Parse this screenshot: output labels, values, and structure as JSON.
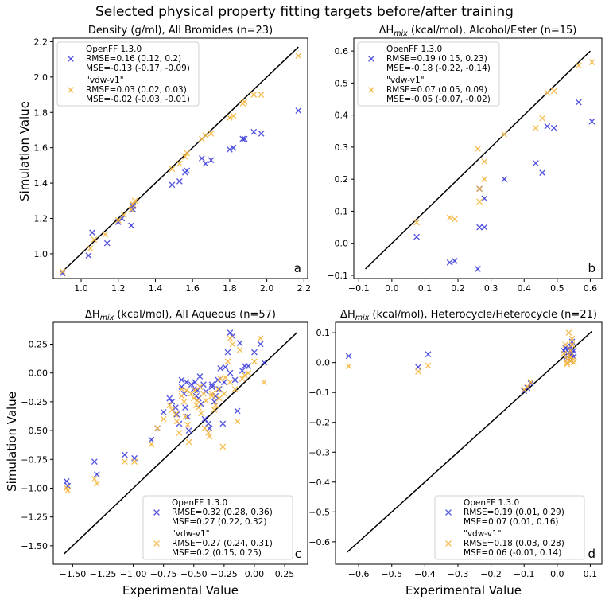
{
  "figure": {
    "title": "Selected physical property fitting targets before/after training",
    "common_xlabel": "Experimental Value",
    "common_ylabel": "Simulation Value"
  },
  "legend": {
    "series1_name": "OpenFF 1.3.0",
    "series2_name": "\"vdw-v1\""
  },
  "colors": {
    "series1": "#3b3bdb",
    "series2": "#f5b53c",
    "line": "#000000"
  },
  "chart_data": [
    {
      "panel": "a",
      "type": "scatter",
      "title": "Density (g/ml), All Bromides (n=23)",
      "xlim": [
        0.85,
        2.22
      ],
      "ylim": [
        0.86,
        2.22
      ],
      "xticks": [
        1.0,
        1.2,
        1.4,
        1.6,
        1.8,
        2.0,
        2.2
      ],
      "xtick_labels": [
        "1.0",
        "1.2",
        "1.4",
        "1.6",
        "1.8",
        "2.0",
        "2.2"
      ],
      "yticks": [
        1.0,
        1.2,
        1.4,
        1.6,
        1.8,
        2.0,
        2.2
      ],
      "ytick_labels": [
        "1.0",
        "1.2",
        "1.4",
        "1.6",
        "1.8",
        "2.0",
        "2.2"
      ],
      "diag": [
        0.9,
        2.17
      ],
      "legend_pos": "top-left",
      "legend_stats": {
        "s1_rmse": "RMSE=0.16 (0.12, 0.2)",
        "s1_mse": "MSE=-0.13 (-0.17, -0.09)",
        "s2_rmse": "RMSE=0.03 (0.02, 0.03)",
        "s2_mse": "MSE=-0.02 (-0.03, -0.01)"
      },
      "series": [
        {
          "name": "OpenFF 1.3.0",
          "x": [
            0.9,
            1.04,
            1.06,
            1.14,
            1.2,
            1.22,
            1.27,
            1.28,
            1.28,
            1.49,
            1.53,
            1.56,
            1.57,
            1.65,
            1.67,
            1.7,
            1.8,
            1.82,
            1.87,
            1.88,
            1.93,
            1.97,
            2.17
          ],
          "y": [
            0.89,
            0.99,
            1.12,
            1.06,
            1.18,
            1.2,
            1.16,
            1.25,
            1.27,
            1.39,
            1.41,
            1.46,
            1.47,
            1.54,
            1.51,
            1.53,
            1.59,
            1.6,
            1.65,
            1.65,
            1.69,
            1.68,
            1.81
          ]
        },
        {
          "name": "\"vdw-v1\"",
          "x": [
            0.9,
            1.05,
            1.07,
            1.13,
            1.2,
            1.23,
            1.27,
            1.28,
            1.29,
            1.49,
            1.53,
            1.56,
            1.57,
            1.65,
            1.67,
            1.7,
            1.8,
            1.82,
            1.87,
            1.88,
            1.93,
            1.97,
            2.17
          ],
          "y": [
            0.9,
            1.03,
            1.08,
            1.11,
            1.19,
            1.22,
            1.25,
            1.28,
            1.3,
            1.48,
            1.51,
            1.55,
            1.57,
            1.65,
            1.67,
            1.68,
            1.77,
            1.78,
            1.85,
            1.86,
            1.9,
            1.9,
            2.12
          ]
        }
      ]
    },
    {
      "panel": "b",
      "type": "scatter",
      "title": "ΔH mix (kcal/mol), Alcohol/Ester (n=15)",
      "title_main": "ΔH",
      "title_sub": "mix",
      "title_rest": " (kcal/mol), Alcohol/Ester (n=15)",
      "xlim": [
        -0.115,
        0.635
      ],
      "ylim": [
        -0.11,
        0.64
      ],
      "xticks": [
        -0.1,
        0.0,
        0.1,
        0.2,
        0.3,
        0.4,
        0.5,
        0.6
      ],
      "xtick_labels": [
        "−0.1",
        "0.0",
        "0.1",
        "0.2",
        "0.3",
        "0.4",
        "0.5",
        "0.6"
      ],
      "yticks": [
        -0.1,
        0.0,
        0.1,
        0.2,
        0.3,
        0.4,
        0.5,
        0.6
      ],
      "ytick_labels": [
        "−0.1",
        "0.0",
        "0.1",
        "0.2",
        "0.3",
        "0.4",
        "0.5",
        "0.6"
      ],
      "diag": [
        -0.08,
        0.6
      ],
      "legend_pos": "top-left",
      "legend_stats": {
        "s1_rmse": "RMSE=0.19 (0.15, 0.23)",
        "s1_mse": "MSE=-0.18 (-0.22, -0.14)",
        "s2_rmse": "RMSE=0.07 (0.05, 0.09)",
        "s2_mse": "MSE=-0.05 (-0.07, -0.02)"
      },
      "series": [
        {
          "name": "OpenFF 1.3.0",
          "x": [
            0.075,
            0.175,
            0.19,
            0.26,
            0.265,
            0.265,
            0.28,
            0.28,
            0.34,
            0.435,
            0.455,
            0.47,
            0.49,
            0.565,
            0.605
          ],
          "y": [
            0.02,
            -0.06,
            -0.055,
            -0.08,
            0.05,
            0.17,
            0.05,
            0.14,
            0.2,
            0.25,
            0.22,
            0.365,
            0.36,
            0.44,
            0.38
          ]
        },
        {
          "name": "\"vdw-v1\"",
          "x": [
            0.075,
            0.175,
            0.19,
            0.26,
            0.265,
            0.265,
            0.28,
            0.28,
            0.34,
            0.435,
            0.455,
            0.47,
            0.49,
            0.565,
            0.605
          ],
          "y": [
            0.065,
            0.08,
            0.075,
            0.295,
            0.13,
            0.17,
            0.2,
            0.255,
            0.34,
            0.36,
            0.39,
            0.47,
            0.475,
            0.555,
            0.565
          ]
        }
      ]
    },
    {
      "panel": "c",
      "type": "scatter",
      "title": "ΔH mix (kcal/mol), All Aqueous (n=57)",
      "title_main": "ΔH",
      "title_sub": "mix",
      "title_rest": " (kcal/mol), All Aqueous (n=57)",
      "xlim": [
        -1.66,
        0.44
      ],
      "ylim": [
        -1.66,
        0.44
      ],
      "xticks": [
        -1.5,
        -1.25,
        -1.0,
        -0.75,
        -0.5,
        -0.25,
        0.0,
        0.25
      ],
      "xtick_labels": [
        "−1.50",
        "−1.25",
        "−1.00",
        "−0.75",
        "−0.50",
        "−0.25",
        "0.00",
        "0.25"
      ],
      "yticks": [
        -1.5,
        -1.25,
        -1.0,
        -0.75,
        -0.5,
        -0.25,
        0.0,
        0.25
      ],
      "ytick_labels": [
        "−1.50",
        "−1.25",
        "−1.00",
        "−0.75",
        "−0.50",
        "−0.25",
        "0.00",
        "0.25"
      ],
      "diag": [
        -1.57,
        0.35
      ],
      "legend_pos": "bottom-right",
      "legend_stats": {
        "s1_rmse": "RMSE=0.32 (0.28, 0.36)",
        "s1_mse": "MSE=0.27 (0.22, 0.32)",
        "s2_rmse": "RMSE=0.27 (0.24, 0.31)",
        "s2_mse": "MSE=0.2 (0.15, 0.25)"
      },
      "series": [
        {
          "name": "OpenFF 1.3.0",
          "x": [
            -1.55,
            -1.54,
            -1.32,
            -1.3,
            -1.07,
            -0.99,
            -0.85,
            -0.8,
            -0.75,
            -0.7,
            -0.68,
            -0.65,
            -0.64,
            -0.62,
            -0.6,
            -0.58,
            -0.56,
            -0.55,
            -0.54,
            -0.52,
            -0.5,
            -0.49,
            -0.48,
            -0.46,
            -0.44,
            -0.42,
            -0.41,
            -0.4,
            -0.38,
            -0.37,
            -0.35,
            -0.33,
            -0.3,
            -0.29,
            -0.28,
            -0.25,
            -0.24,
            -0.22,
            -0.2,
            -0.18,
            -0.16,
            -0.12,
            -0.1,
            -0.08,
            -0.05,
            0.0,
            0.05,
            0.08,
            -0.6,
            -0.45,
            -0.35,
            -0.26,
            -0.14,
            -0.57,
            -0.47,
            -0.32,
            -0.2
          ],
          "y": [
            -0.94,
            -0.98,
            -0.77,
            -0.88,
            -0.71,
            -0.74,
            -0.58,
            -0.48,
            -0.34,
            -0.22,
            -0.25,
            -0.3,
            -0.36,
            -0.44,
            -0.12,
            -0.18,
            -0.08,
            -0.38,
            -0.5,
            -0.1,
            -0.14,
            -0.08,
            -0.2,
            -0.22,
            -0.27,
            -0.1,
            -0.4,
            -0.16,
            -0.44,
            -0.48,
            -0.12,
            -0.25,
            -0.06,
            -0.14,
            0.04,
            -0.08,
            0.05,
            0.18,
            0.35,
            0.32,
            -0.06,
            0.26,
            0.02,
            0.06,
            0.06,
            0.18,
            0.25,
            0.09,
            -0.06,
            -0.03,
            -0.1,
            -0.44,
            -0.33,
            -0.3,
            -0.15,
            -0.2,
            0.0
          ]
        },
        {
          "name": "\"vdw-v1\"",
          "x": [
            -1.55,
            -1.54,
            -1.32,
            -1.3,
            -1.07,
            -0.99,
            -0.85,
            -0.8,
            -0.75,
            -0.7,
            -0.68,
            -0.65,
            -0.64,
            -0.62,
            -0.6,
            -0.58,
            -0.56,
            -0.55,
            -0.54,
            -0.52,
            -0.5,
            -0.49,
            -0.48,
            -0.46,
            -0.44,
            -0.42,
            -0.41,
            -0.4,
            -0.38,
            -0.37,
            -0.35,
            -0.33,
            -0.3,
            -0.29,
            -0.28,
            -0.25,
            -0.24,
            -0.22,
            -0.2,
            -0.18,
            -0.16,
            -0.12,
            -0.1,
            -0.08,
            -0.05,
            0.0,
            0.05,
            0.08,
            -0.6,
            -0.45,
            -0.35,
            -0.26,
            -0.14,
            -0.57,
            -0.47,
            -0.32,
            -0.2
          ],
          "y": [
            -1.0,
            -1.02,
            -0.92,
            -0.96,
            -0.77,
            -0.77,
            -0.62,
            -0.48,
            -0.4,
            -0.28,
            -0.32,
            -0.36,
            -0.42,
            -0.52,
            -0.2,
            -0.25,
            -0.15,
            -0.45,
            -0.6,
            -0.18,
            -0.22,
            -0.15,
            -0.28,
            -0.3,
            -0.35,
            -0.18,
            -0.48,
            -0.24,
            -0.52,
            -0.55,
            -0.2,
            -0.32,
            -0.14,
            -0.22,
            -0.05,
            -0.18,
            -0.04,
            0.1,
            0.3,
            0.25,
            -0.14,
            0.2,
            -0.05,
            -0.02,
            0.0,
            0.1,
            0.3,
            -0.08,
            -0.14,
            -0.12,
            -0.18,
            -0.64,
            -0.42,
            -0.38,
            -0.24,
            -0.28,
            -0.08
          ]
        }
      ]
    },
    {
      "panel": "d",
      "type": "scatter",
      "title": "ΔH mix (kcal/mol), Heterocycle/Heterocycle (n=21)",
      "title_main": "ΔH",
      "title_sub": "mix",
      "title_rest": " (kcal/mol), Heterocycle/Heterocycle (n=21)",
      "xlim": [
        -0.67,
        0.135
      ],
      "ylim": [
        -0.675,
        0.135
      ],
      "xticks": [
        -0.6,
        -0.5,
        -0.4,
        -0.3,
        -0.2,
        -0.1,
        0.0,
        0.1
      ],
      "xtick_labels": [
        "−0.6",
        "−0.5",
        "−0.4",
        "−0.3",
        "−0.2",
        "−0.1",
        "0.0",
        "0.1"
      ],
      "yticks": [
        -0.6,
        -0.5,
        -0.4,
        -0.3,
        -0.2,
        -0.1,
        0.0,
        0.1
      ],
      "ytick_labels": [
        "−0.6",
        "−0.5",
        "−0.4",
        "−0.3",
        "−0.2",
        "−0.1",
        "0.0",
        "0.1"
      ],
      "diag": [
        -0.635,
        0.105
      ],
      "legend_pos": "bottom-right",
      "legend_stats": {
        "s1_rmse": "RMSE=0.19 (0.01, 0.29)",
        "s1_mse": "MSE=0.07 (0.01, 0.16)",
        "s2_rmse": "RMSE=0.18 (0.03, 0.28)",
        "s2_mse": "MSE=0.06 (-0.01, 0.14)"
      },
      "series": [
        {
          "name": "OpenFF 1.3.0",
          "x": [
            -0.63,
            -0.42,
            -0.39,
            -0.1,
            -0.09,
            -0.08,
            0.02,
            0.025,
            0.03,
            0.03,
            0.035,
            0.035,
            0.04,
            0.04,
            0.04,
            0.045,
            0.045,
            0.05,
            0.05,
            0.03,
            0.04
          ],
          "y": [
            0.022,
            -0.015,
            0.028,
            -0.095,
            -0.085,
            -0.07,
            0.04,
            0.05,
            0.02,
            0.03,
            0.035,
            0.045,
            0.025,
            0.015,
            0.055,
            0.07,
            0.03,
            0.04,
            0.02,
            0.01,
            0.005
          ]
        },
        {
          "name": "\"vdw-v1\"",
          "x": [
            -0.63,
            -0.42,
            -0.39,
            -0.1,
            -0.09,
            -0.08,
            0.02,
            0.025,
            0.03,
            0.03,
            0.035,
            0.035,
            0.04,
            0.04,
            0.04,
            0.045,
            0.045,
            0.05,
            0.05,
            0.03,
            0.04
          ],
          "y": [
            -0.012,
            -0.03,
            -0.01,
            -0.09,
            -0.08,
            -0.065,
            0.03,
            0.06,
            0.0,
            0.01,
            0.025,
            0.1,
            0.02,
            0.005,
            0.04,
            0.06,
            0.08,
            0.0,
            0.01,
            -0.005,
            0.015
          ]
        }
      ]
    }
  ]
}
